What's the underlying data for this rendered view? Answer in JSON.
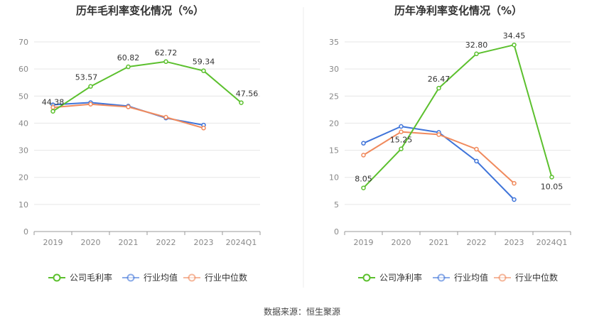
{
  "source_label": "数据来源：恒生聚源",
  "chart_data": [
    {
      "type": "line",
      "title": "历年毛利率变化情况（%）",
      "categories": [
        "2019",
        "2020",
        "2021",
        "2022",
        "2023",
        "2024Q1"
      ],
      "ylim": [
        0,
        70
      ],
      "yticks": [
        0,
        10,
        20,
        30,
        40,
        50,
        60,
        70
      ],
      "grid": true,
      "legend_position": "bottom",
      "series": [
        {
          "name": "公司毛利率",
          "color": "#5cc02e",
          "values": [
            44.38,
            53.57,
            60.82,
            62.72,
            59.34,
            47.56
          ],
          "labels": [
            "44.38",
            "53.57",
            "60.82",
            "62.72",
            "59.34",
            "47.56"
          ]
        },
        {
          "name": "行业均值",
          "color": "#3f74d9",
          "values": [
            46.8,
            47.6,
            46.3,
            41.9,
            39.3,
            null
          ]
        },
        {
          "name": "行业中位数",
          "color": "#f08a5d",
          "values": [
            45.8,
            47.0,
            46.0,
            42.2,
            38.2,
            null
          ]
        }
      ]
    },
    {
      "type": "line",
      "title": "历年净利率变化情况（%）",
      "categories": [
        "2019",
        "2020",
        "2021",
        "2022",
        "2023",
        "2024Q1"
      ],
      "ylim": [
        0,
        35
      ],
      "yticks": [
        0,
        5,
        10,
        15,
        20,
        25,
        30,
        35
      ],
      "grid": true,
      "legend_position": "bottom",
      "series": [
        {
          "name": "公司净利率",
          "color": "#5cc02e",
          "values": [
            8.05,
            15.25,
            26.47,
            32.8,
            34.45,
            10.05
          ],
          "labels": [
            "8.05",
            "15.25",
            "26.47",
            "32.80",
            "34.45",
            "10.05"
          ]
        },
        {
          "name": "行业均值",
          "color": "#3f74d9",
          "values": [
            16.3,
            19.4,
            18.3,
            13.0,
            5.9,
            null
          ]
        },
        {
          "name": "行业中位数",
          "color": "#f08a5d",
          "values": [
            14.1,
            18.4,
            17.9,
            15.2,
            8.9,
            null
          ]
        }
      ]
    }
  ]
}
